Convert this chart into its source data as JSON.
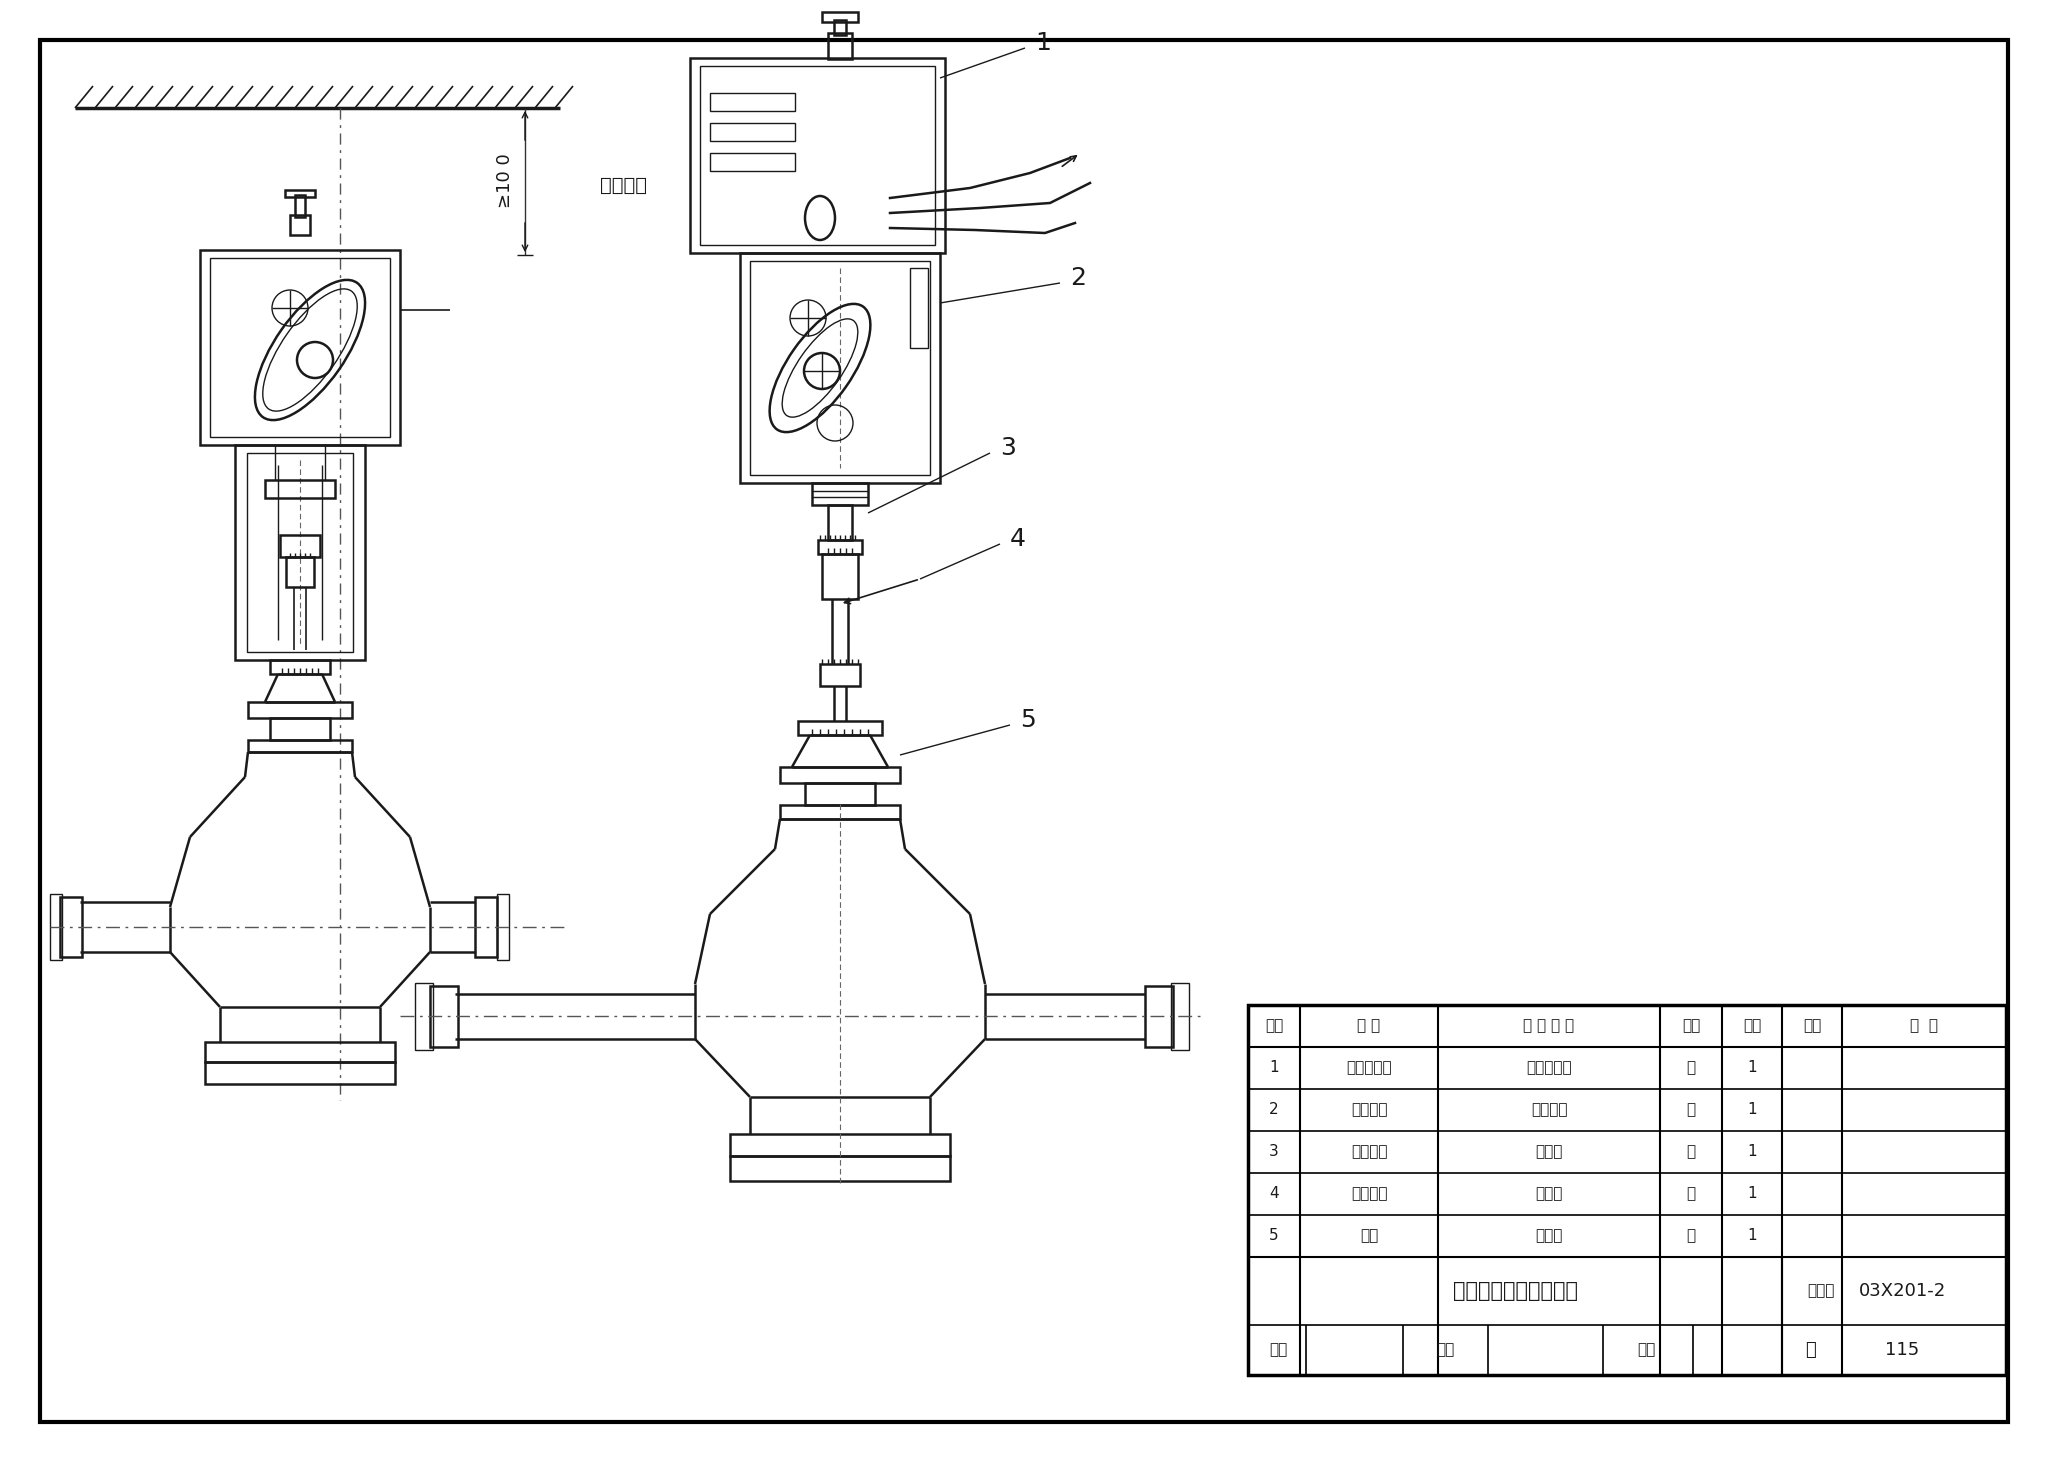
{
  "bg_color": "#ffffff",
  "line_color": "#1a1a1a",
  "title": "阀门执行器安装（三）",
  "atlas_label": "图集号",
  "atlas_no": "03X201-2",
  "page_label": "页",
  "page_no": "115",
  "dim_label": "≥10 0",
  "dim_text": "拆装距离",
  "table_header": [
    "序号",
    "名 称",
    "型 号 规 格",
    "单位",
    "数量",
    "页次",
    "备  注"
  ],
  "table_rows": [
    [
      "1",
      "阀门执行器",
      "见工程设计",
      "套",
      "1",
      "",
      ""
    ],
    [
      "2",
      "连接螺母",
      "随执行器",
      "个",
      "1",
      "",
      ""
    ],
    [
      "3",
      "紧锁螺母",
      "随阀体",
      "个",
      "1",
      "",
      ""
    ],
    [
      "4",
      "紧锁螺母",
      "随阀体",
      "个",
      "1",
      "",
      ""
    ],
    [
      "5",
      "阀体",
      "随阀体",
      "套",
      "1",
      "",
      ""
    ]
  ],
  "bottom_text": "审核",
  "proofread_text": "校对",
  "design_text": "设计"
}
